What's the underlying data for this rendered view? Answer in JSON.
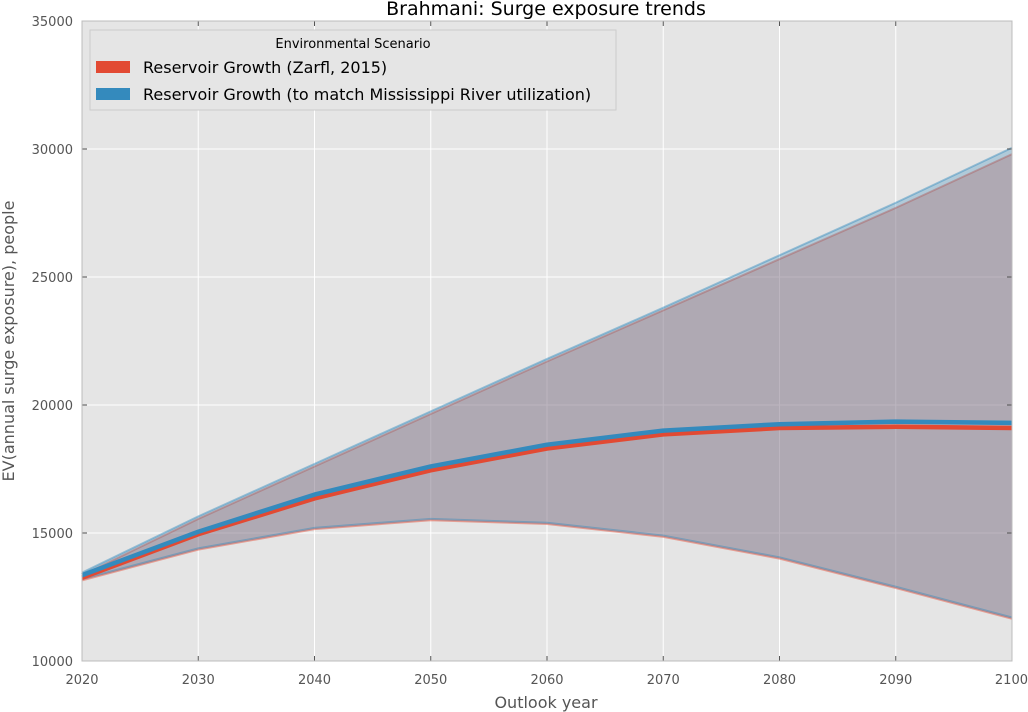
{
  "chart_data": {
    "type": "line",
    "title": "Brahmani: Surge exposure trends",
    "xlabel": "Outlook year",
    "ylabel": "EV(annual surge exposure), people",
    "xlim": [
      2020,
      2100
    ],
    "ylim": [
      10000,
      35000
    ],
    "x_ticks": [
      "2020",
      "2030",
      "2040",
      "2050",
      "2060",
      "2070",
      "2080",
      "2090",
      "2100"
    ],
    "y_ticks": [
      "10000",
      "15000",
      "20000",
      "25000",
      "30000",
      "35000"
    ],
    "grid": true,
    "legend_title": "Environmental Scenario",
    "legend_position": "top-left",
    "x": [
      2020,
      2030,
      2040,
      2050,
      2060,
      2070,
      2080,
      2090,
      2100
    ],
    "series": [
      {
        "name": "Reservoir Growth (Zarfl, 2015)",
        "color": "#E24A33",
        "values": [
          13250,
          14950,
          16350,
          17450,
          18300,
          18850,
          19100,
          19150,
          19100
        ],
        "lower": [
          13150,
          14350,
          15150,
          15500,
          15350,
          14850,
          14000,
          12850,
          11650
        ],
        "upper": [
          13350,
          15550,
          17600,
          19650,
          21700,
          23700,
          25700,
          27700,
          29800
        ]
      },
      {
        "name": "Reservoir Growth (to match Mississippi River utilization)",
        "color": "#348ABD",
        "values": [
          13350,
          15050,
          16500,
          17600,
          18450,
          19000,
          19250,
          19350,
          19300
        ],
        "lower": [
          13200,
          14400,
          15200,
          15550,
          15400,
          14900,
          14050,
          12900,
          11700
        ],
        "upper": [
          13450,
          15650,
          17700,
          19750,
          21800,
          23800,
          25850,
          27900,
          30050
        ]
      }
    ]
  }
}
